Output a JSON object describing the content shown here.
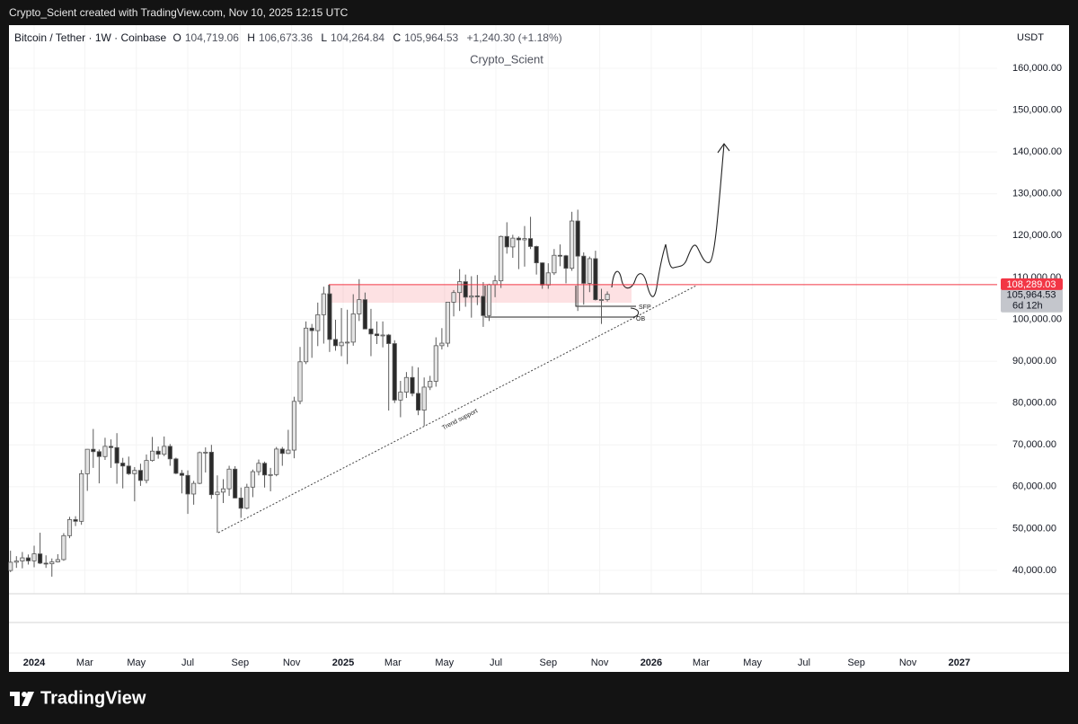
{
  "page_header": "Crypto_Scient created with TradingView.com, Nov 10, 2025 12:15 UTC",
  "footer_brand": "TradingView",
  "chart_data": {
    "type": "candlestick",
    "title": "Bitcoin / Tether · 1W · Coinbase",
    "ohlc_legend": [
      {
        "key": "O",
        "text": "104,719.06"
      },
      {
        "key": "H",
        "text": "106,673.36"
      },
      {
        "key": "L",
        "text": "104,264.84"
      },
      {
        "key": "C",
        "text": "105,964.53"
      }
    ],
    "change": "+1,240.30 (+1.18%)",
    "watermark": "Crypto_Scient",
    "currency": "USDT",
    "categories": [
      null,
      null,
      null,
      null,
      null,
      null,
      null,
      null,
      null,
      null,
      null,
      null,
      null,
      null,
      null,
      null,
      null,
      null,
      null,
      null,
      null,
      null,
      null,
      null,
      null,
      null,
      null,
      null,
      null,
      null,
      null,
      null,
      null,
      null,
      null,
      null,
      null,
      null,
      null,
      null,
      null,
      null,
      null,
      null,
      null,
      null,
      null,
      null,
      null,
      null,
      null,
      null,
      null,
      null,
      null,
      null,
      null,
      null,
      null,
      null,
      null,
      null,
      null,
      null,
      null,
      null,
      null,
      null,
      null,
      null,
      null,
      null,
      null,
      null,
      null,
      null,
      null,
      null,
      null,
      null,
      null,
      null,
      null,
      null,
      null,
      null,
      null,
      null,
      null,
      null,
      null,
      null,
      null,
      null,
      null,
      null,
      null,
      null,
      null,
      null,
      null,
      null
    ],
    "open": [
      39970,
      41950,
      42250,
      43000,
      42280,
      43950,
      41730,
      41580,
      42030,
      42580,
      48300,
      52140,
      51730,
      63100,
      68950,
      68380,
      67210,
      69650,
      69350,
      65650,
      64940,
      63110,
      63900,
      61500,
      66270,
      68500,
      67750,
      69650,
      66650,
      63200,
      62700,
      58250,
      60800,
      68150,
      68250,
      58100,
      58700,
      59500,
      64200,
      57300,
      54850,
      59900,
      63600,
      65600,
      62800,
      62900,
      69000,
      67950,
      68750,
      80400,
      89850,
      97900,
      97300,
      101100,
      106100,
      95200,
      93700,
      94500,
      94550,
      101300,
      104700,
      97700,
      96500,
      96100,
      96250,
      94200,
      80700,
      82600,
      86100,
      82300,
      78300,
      83800,
      85200,
      93700,
      94300,
      104100,
      106400,
      109000,
      105300,
      105600,
      105500,
      100900,
      108300,
      109200,
      119800,
      117300,
      119400,
      119000,
      119300,
      117400,
      113500,
      108200,
      111100,
      115300,
      115200,
      112200,
      123500,
      115100,
      108600,
      114500,
      104700,
      104719.06
    ],
    "high": [
      44700,
      43400,
      44400,
      43800,
      45900,
      49000,
      43600,
      42850,
      43880,
      48900,
      52800,
      52950,
      64000,
      69000,
      73800,
      68900,
      71700,
      71300,
      72800,
      66900,
      67200,
      64700,
      65500,
      67700,
      71900,
      69600,
      72000,
      70200,
      66950,
      64000,
      63900,
      61400,
      68400,
      69400,
      70000,
      62700,
      61800,
      65000,
      64900,
      59800,
      60700,
      64100,
      66500,
      66000,
      64500,
      69500,
      69500,
      73600,
      81500,
      93400,
      99500,
      98900,
      104000,
      107800,
      108300,
      99900,
      102700,
      102300,
      106000,
      109600,
      106400,
      102500,
      99500,
      99500,
      96500,
      95000,
      85300,
      87400,
      88800,
      88500,
      86100,
      86500,
      95700,
      97900,
      104100,
      107000,
      112000,
      110700,
      110300,
      110600,
      108900,
      108500,
      110500,
      120000,
      123200,
      120200,
      119800,
      122300,
      124500,
      117600,
      113600,
      113400,
      116800,
      117900,
      115400,
      125700,
      126200,
      116000,
      115000,
      116400,
      107300,
      106673.36
    ],
    "low": [
      39600,
      40600,
      40500,
      41400,
      40750,
      41500,
      40600,
      38500,
      41880,
      42300,
      47700,
      50600,
      50900,
      59000,
      64500,
      60800,
      66400,
      64500,
      60700,
      59600,
      62800,
      56500,
      60200,
      60800,
      66000,
      66700,
      67300,
      65000,
      63000,
      58400,
      53500,
      55700,
      60600,
      63400,
      57100,
      49000,
      56100,
      57800,
      57200,
      52550,
      54600,
      57500,
      62700,
      59800,
      58900,
      62500,
      65000,
      67800,
      66800,
      79700,
      89300,
      90800,
      93600,
      94200,
      92200,
      92500,
      91200,
      89300,
      93700,
      99600,
      97700,
      91200,
      94100,
      93300,
      78200,
      80000,
      76600,
      81200,
      81600,
      77100,
      74500,
      83100,
      83900,
      92800,
      93400,
      100700,
      102000,
      103000,
      100400,
      103400,
      98200,
      99600,
      105300,
      107500,
      115700,
      114700,
      112000,
      112600,
      116800,
      110700,
      107300,
      107300,
      110600,
      112700,
      108600,
      111600,
      102000,
      103500,
      106500,
      104500,
      98900,
      104264.84
    ],
    "close": [
      41950,
      42250,
      43000,
      42280,
      43950,
      41730,
      41580,
      42030,
      42580,
      48300,
      52140,
      51730,
      63100,
      68950,
      68380,
      67210,
      69650,
      69350,
      65650,
      64940,
      63110,
      63900,
      61500,
      66270,
      68500,
      67750,
      69650,
      66650,
      63200,
      62700,
      58250,
      60800,
      68150,
      68250,
      58100,
      58700,
      59500,
      64200,
      57300,
      54850,
      59900,
      63600,
      65600,
      62800,
      62900,
      69000,
      67950,
      68750,
      80400,
      89850,
      97900,
      97300,
      101100,
      106100,
      95200,
      93700,
      94500,
      94550,
      101300,
      104700,
      97700,
      96500,
      96100,
      96250,
      94200,
      80700,
      82600,
      86100,
      82300,
      78300,
      83800,
      85200,
      93700,
      94300,
      104100,
      106400,
      109000,
      105300,
      105600,
      105500,
      100900,
      108300,
      109200,
      119800,
      117300,
      119400,
      119000,
      119300,
      117400,
      113500,
      108200,
      111100,
      115300,
      115200,
      112200,
      123500,
      115100,
      108600,
      114500,
      104700,
      104720,
      105964.53
    ],
    "up_color": "#e3e3e3",
    "down_color": "#2a2a2a",
    "border_color": "#5a5a5a",
    "ylim": [
      34418,
      170305
    ],
    "yticks": [
      {
        "value": 40000,
        "label": "40,000.00"
      },
      {
        "value": 50000,
        "label": "50,000.00"
      },
      {
        "value": 60000,
        "label": "60,000.00"
      },
      {
        "value": 70000,
        "label": "70,000.00"
      },
      {
        "value": 80000,
        "label": "80,000.00"
      },
      {
        "value": 90000,
        "label": "90,000.00"
      },
      {
        "value": 100000,
        "label": "100,000.00"
      },
      {
        "value": 110000,
        "label": "110,000.00"
      },
      {
        "value": 120000,
        "label": "120,000.00"
      },
      {
        "value": 130000,
        "label": "130,000.00"
      },
      {
        "value": 140000,
        "label": "140,000.00"
      },
      {
        "value": 150000,
        "label": "150,000.00"
      },
      {
        "value": 160000,
        "label": "160,000.00"
      }
    ],
    "xlim": [
      -0.26,
      166.97
    ],
    "xticks": [
      {
        "value": 4.0,
        "label": "2024"
      },
      {
        "value": 12.57,
        "label": "Mar"
      },
      {
        "value": 21.29,
        "label": "May"
      },
      {
        "value": 30.0,
        "label": "Jul"
      },
      {
        "value": 38.86,
        "label": "Sep"
      },
      {
        "value": 47.57,
        "label": "Nov"
      },
      {
        "value": 56.29,
        "label": "2025"
      },
      {
        "value": 64.71,
        "label": "Mar"
      },
      {
        "value": 73.43,
        "label": "May"
      },
      {
        "value": 82.14,
        "label": "Jul"
      },
      {
        "value": 91.0,
        "label": "Sep"
      },
      {
        "value": 99.71,
        "label": "Nov"
      },
      {
        "value": 108.43,
        "label": "2026"
      },
      {
        "value": 116.86,
        "label": "Mar"
      },
      {
        "value": 125.57,
        "label": "May"
      },
      {
        "value": 134.29,
        "label": "Jul"
      },
      {
        "value": 143.14,
        "label": "Sep"
      },
      {
        "value": 151.86,
        "label": "Nov"
      },
      {
        "value": 160.57,
        "label": "2027"
      }
    ],
    "grid": true,
    "price_tags": [
      {
        "value": 108289.03,
        "label": "108,289.03",
        "color": "#f23645"
      },
      {
        "value": 105964.53,
        "label": "105,964.53",
        "color": "#c4c6cc"
      }
    ],
    "countdown": "6d 12h",
    "annotations": {
      "sfp": "SFP",
      "ob": "OB",
      "trend": "Trend support"
    }
  }
}
